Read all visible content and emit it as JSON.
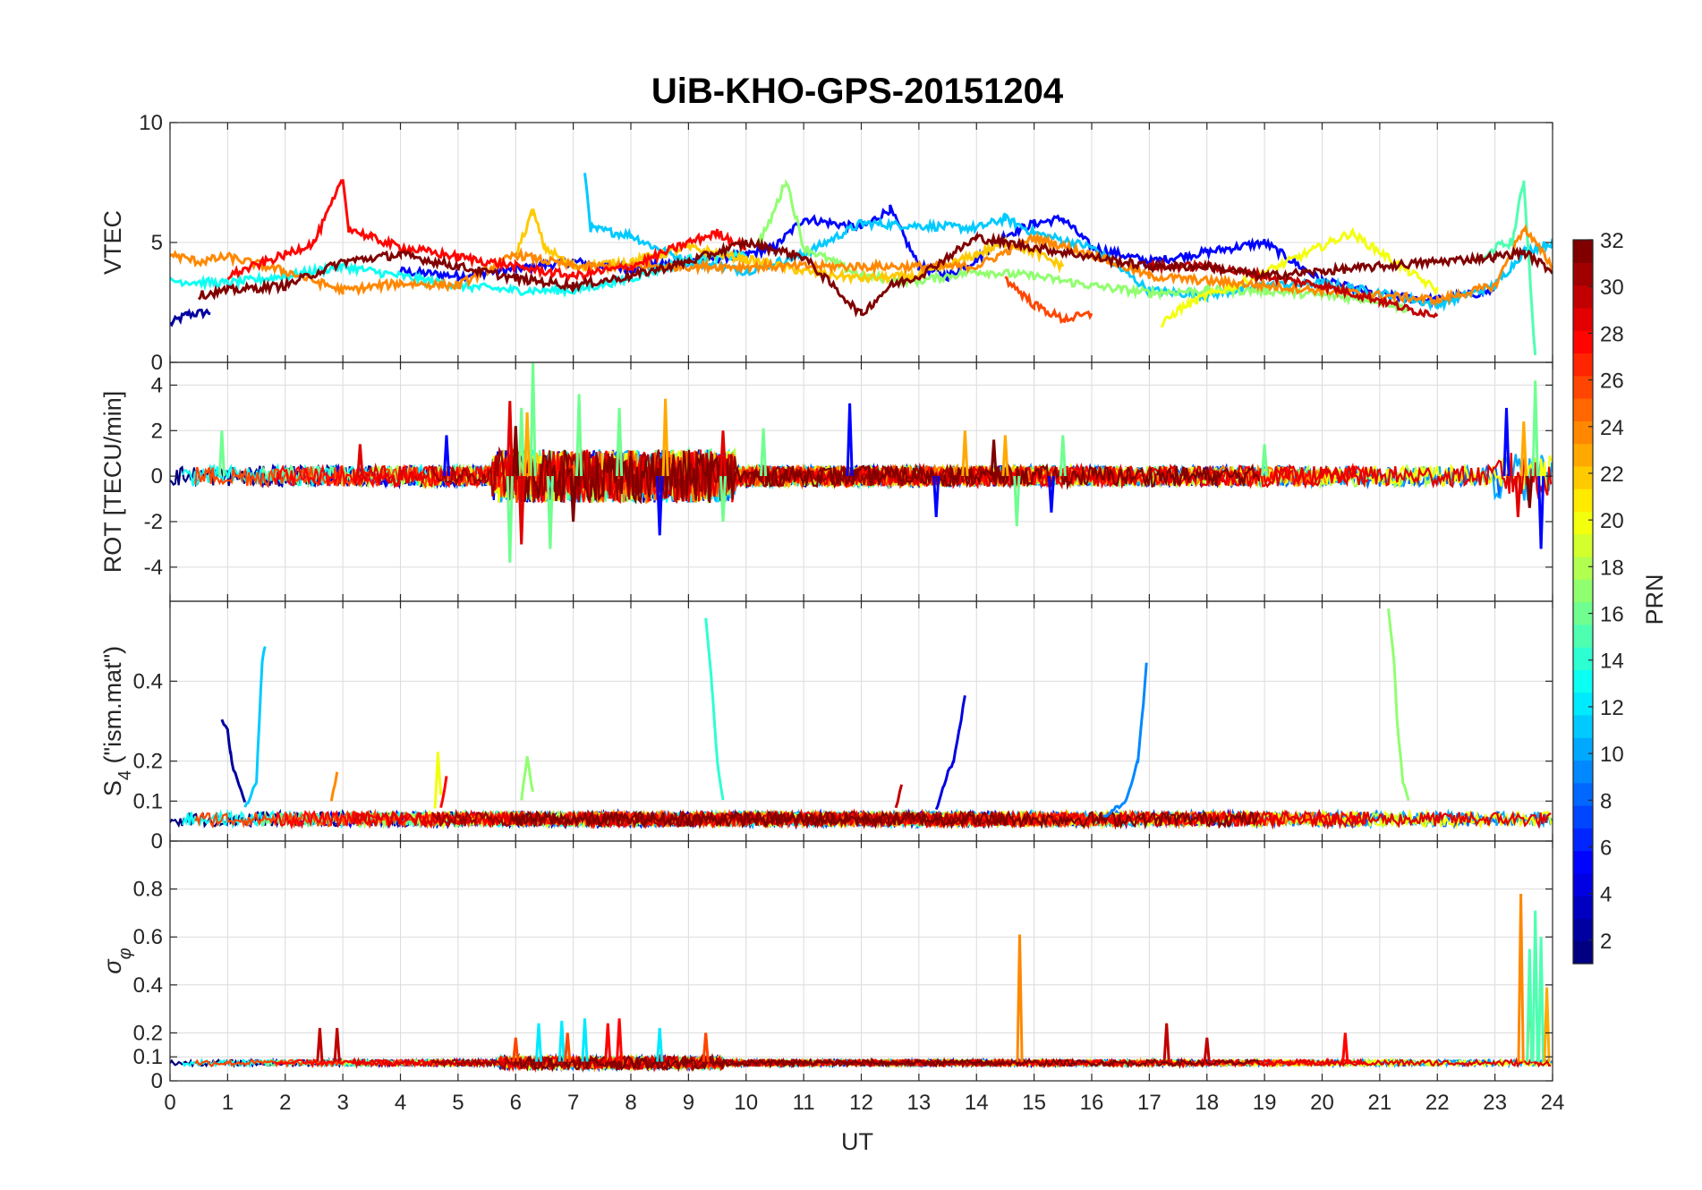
{
  "title": "UiB-KHO-GPS-20151204",
  "chart_data": [
    {
      "type": "line",
      "panel": "vtec",
      "ylabel": "VTEC",
      "ylim": [
        0,
        10
      ],
      "yticks": [
        0,
        5,
        10
      ],
      "xlim": [
        0,
        24
      ],
      "grid": true,
      "series": [
        {
          "prn": 2,
          "x": [
            0.0,
            0.3,
            0.7
          ],
          "y": [
            1.6,
            2.0,
            2.1
          ]
        },
        {
          "prn": 5,
          "x": [
            4.0,
            5.0,
            6.0,
            7.0,
            8.0,
            9.0,
            10.0,
            10.5,
            11.0,
            12.0,
            12.5,
            13.0,
            13.5,
            14.0,
            14.5,
            15.0,
            15.5,
            16.0,
            17.0,
            18.0,
            19.0,
            20.0,
            21.0,
            22.0,
            23.0
          ],
          "y": [
            3.8,
            3.6,
            3.9,
            4.2,
            3.9,
            4.2,
            4.5,
            4.8,
            6.0,
            5.6,
            6.4,
            4.0,
            3.6,
            4.3,
            5.3,
            5.8,
            6.0,
            4.8,
            4.2,
            4.6,
            5.0,
            3.4,
            2.8,
            2.6,
            3.0
          ]
        },
        {
          "prn": 11,
          "x": [
            7.2,
            7.3,
            7.5,
            8.0,
            8.5,
            9.0,
            10.0,
            11.0,
            12.0,
            14.0,
            14.5,
            15.0,
            16.0,
            17.0,
            18.0,
            19.0,
            20.0,
            21.0,
            22.0,
            22.5,
            23.0,
            23.5,
            24.0
          ],
          "y": [
            8.0,
            5.6,
            5.5,
            5.3,
            4.7,
            4.2,
            3.8,
            4.5,
            5.8,
            5.6,
            6.0,
            5.4,
            4.8,
            3.0,
            2.8,
            3.2,
            3.3,
            2.9,
            2.4,
            2.8,
            3.2,
            4.6,
            5.0
          ]
        },
        {
          "prn": 13,
          "x": [
            0.0,
            1.0,
            2.0,
            3.0,
            4.0,
            5.0,
            6.0,
            7.0,
            8.0,
            9.0,
            10.0
          ],
          "y": [
            3.4,
            3.3,
            3.6,
            4.0,
            3.6,
            3.2,
            3.0,
            3.0,
            3.5,
            4.3,
            4.5
          ]
        },
        {
          "prn": 15,
          "x": [
            22.8,
            23.0,
            23.3,
            23.5,
            23.7
          ],
          "y": [
            4.2,
            4.8,
            5.0,
            7.6,
            0.2
          ]
        },
        {
          "prn": 17,
          "x": [
            10.2,
            10.4,
            10.6,
            10.7,
            11.0,
            12.0,
            13.0,
            14.0,
            15.0,
            16.0,
            17.0,
            18.0,
            19.0,
            20.0,
            21.0,
            21.5
          ],
          "y": [
            5.0,
            5.8,
            7.0,
            7.6,
            4.8,
            3.6,
            3.4,
            3.8,
            3.6,
            3.2,
            2.9,
            3.0,
            3.0,
            2.8,
            2.6,
            2.2
          ]
        },
        {
          "prn": 20,
          "x": [
            17.2,
            17.5,
            18.0,
            18.5,
            20.5,
            21.0,
            21.5,
            22.0
          ],
          "y": [
            1.5,
            2.2,
            2.8,
            3.2,
            5.4,
            4.6,
            3.8,
            3.0
          ]
        },
        {
          "prn": 22,
          "x": [
            6.0,
            6.3,
            6.5,
            7.0,
            8.0,
            9.0,
            10.0,
            11.0,
            12.0,
            13.0,
            14.0,
            14.5,
            15.0,
            15.5
          ],
          "y": [
            4.5,
            6.3,
            4.8,
            4.0,
            4.2,
            4.8,
            4.3,
            3.8,
            3.5,
            3.6,
            4.5,
            5.0,
            4.6,
            4.0
          ]
        },
        {
          "prn": 24,
          "x": [
            0.0,
            0.5,
            1.0,
            2.0,
            3.0,
            4.0,
            5.0,
            6.0,
            7.0,
            14.0,
            15.0,
            16.0,
            17.0,
            22.0,
            23.0,
            23.5,
            24.0
          ],
          "y": [
            4.5,
            4.2,
            4.4,
            3.8,
            3.0,
            3.3,
            3.2,
            4.5,
            4.0,
            4.0,
            5.2,
            4.5,
            3.6,
            2.6,
            3.2,
            5.6,
            4.0
          ]
        },
        {
          "prn": 26,
          "x": [
            14.5,
            15.0,
            15.5,
            16.0
          ],
          "y": [
            3.5,
            2.4,
            1.8,
            2.0
          ]
        },
        {
          "prn": 28,
          "x": [
            1.0,
            2.0,
            2.5,
            3.0,
            3.1,
            3.5,
            4.0,
            5.0,
            6.0,
            7.0,
            8.0,
            9.0,
            9.5,
            10.0
          ],
          "y": [
            3.6,
            4.5,
            5.0,
            7.6,
            5.6,
            5.2,
            4.8,
            4.4,
            4.0,
            3.6,
            4.0,
            5.0,
            5.4,
            4.8
          ]
        },
        {
          "prn": 30,
          "x": [
            17.0,
            18.0,
            19.0,
            20.0,
            21.0,
            21.5,
            22.0
          ],
          "y": [
            4.0,
            4.0,
            3.6,
            3.2,
            2.6,
            2.2,
            2.0
          ]
        },
        {
          "prn": 32,
          "x": [
            0.5,
            1.0,
            2.0,
            3.0,
            4.0,
            5.0,
            6.0,
            7.0,
            8.0,
            9.0,
            10.0,
            11.0,
            12.0,
            12.5,
            13.0,
            14.0,
            14.5,
            17.0,
            18.0,
            19.0,
            23.0,
            23.5,
            24.0
          ],
          "y": [
            2.8,
            3.0,
            3.2,
            4.2,
            4.5,
            4.0,
            3.5,
            3.2,
            3.6,
            4.2,
            5.0,
            4.4,
            2.0,
            3.2,
            3.6,
            5.2,
            5.0,
            4.0,
            4.0,
            3.6,
            4.4,
            4.6,
            3.8
          ]
        }
      ]
    },
    {
      "type": "line",
      "panel": "rot",
      "ylabel": "ROT [TECU/min]",
      "ylim": [
        -5.5,
        5
      ],
      "yticks": [
        -4,
        -2,
        0,
        2,
        4
      ],
      "xlim": [
        0,
        24
      ],
      "grid": true,
      "spikes": [
        {
          "prn": 16,
          "x": [
            0.9,
            5.9,
            6.1,
            6.3,
            6.6,
            7.1,
            7.8,
            9.6,
            10.3,
            14.7,
            15.5,
            19.0,
            23.7
          ],
          "y": [
            2.0,
            -3.8,
            3.0,
            5.1,
            -3.2,
            3.6,
            3.0,
            -2.0,
            2.1,
            -2.2,
            1.8,
            1.4,
            4.2
          ]
        },
        {
          "prn": 5,
          "x": [
            4.8,
            8.5,
            11.8,
            13.3,
            15.3,
            23.2,
            23.8
          ],
          "y": [
            1.8,
            -2.6,
            3.2,
            -1.8,
            -1.6,
            3.0,
            -3.2
          ]
        },
        {
          "prn": 23,
          "x": [
            6.2,
            8.6,
            13.8,
            14.5,
            23.5
          ],
          "y": [
            2.8,
            3.4,
            2.0,
            1.8,
            2.4
          ]
        },
        {
          "prn": 29,
          "x": [
            3.3,
            5.9,
            6.1,
            9.6,
            23.4
          ],
          "y": [
            1.4,
            3.3,
            -3.0,
            2.0,
            -1.8
          ]
        },
        {
          "prn": 32,
          "x": [
            6.0,
            7.0,
            14.3,
            23.6
          ],
          "y": [
            2.2,
            -2.0,
            1.6,
            -1.4
          ]
        }
      ]
    },
    {
      "type": "line",
      "panel": "s4",
      "ylabel": "S_4 (\"ism.mat\")",
      "ylim": [
        0,
        0.6
      ],
      "yticks": [
        0,
        0.1,
        0.2,
        0.4
      ],
      "xlim": [
        0,
        24
      ],
      "grid": true,
      "series": [
        {
          "prn": 2,
          "x": [
            0.9,
            1.0,
            1.05,
            1.1,
            1.2,
            1.3
          ],
          "y": [
            0.3,
            0.28,
            0.22,
            0.18,
            0.14,
            0.1
          ]
        },
        {
          "prn": 11,
          "x": [
            1.3,
            1.5,
            1.55,
            1.6,
            1.65
          ],
          "y": [
            0.08,
            0.15,
            0.3,
            0.45,
            0.49
          ]
        },
        {
          "prn": 14,
          "x": [
            9.3,
            9.4,
            9.45,
            9.5,
            9.6
          ],
          "y": [
            0.56,
            0.4,
            0.3,
            0.2,
            0.1
          ]
        },
        {
          "prn": 4,
          "x": [
            13.3,
            13.5,
            13.6,
            13.7,
            13.8
          ],
          "y": [
            0.08,
            0.17,
            0.2,
            0.28,
            0.36
          ]
        },
        {
          "prn": 9,
          "x": [
            16.2,
            16.6,
            16.8,
            16.9,
            16.95
          ],
          "y": [
            0.06,
            0.1,
            0.2,
            0.35,
            0.45
          ]
        },
        {
          "prn": 17,
          "x": [
            21.15,
            21.25,
            21.3,
            21.4,
            21.5
          ],
          "y": [
            0.58,
            0.45,
            0.3,
            0.15,
            0.1
          ]
        },
        {
          "prn": 20,
          "x": [
            4.6,
            4.65,
            4.7
          ],
          "y": [
            0.08,
            0.22,
            0.12
          ]
        },
        {
          "prn": 17,
          "x": [
            6.1,
            6.2,
            6.3
          ],
          "y": [
            0.1,
            0.21,
            0.12
          ]
        },
        {
          "prn": 24,
          "x": [
            2.8,
            2.9
          ],
          "y": [
            0.1,
            0.17
          ]
        },
        {
          "prn": 30,
          "x": [
            12.6,
            12.7
          ],
          "y": [
            0.08,
            0.14
          ]
        },
        {
          "prn": 28,
          "x": [
            4.7,
            4.8
          ],
          "y": [
            0.08,
            0.16
          ]
        }
      ]
    },
    {
      "type": "line",
      "panel": "sigma_phi",
      "ylabel": "σ_φ",
      "ylim": [
        0,
        1
      ],
      "yticks": [
        0,
        0.1,
        0.2,
        0.4,
        0.6,
        0.8
      ],
      "xlim": [
        0,
        24
      ],
      "grid": true,
      "spikes": [
        {
          "prn": 24,
          "x": [
            14.75,
            23.45,
            23.6
          ],
          "y": [
            0.61,
            0.78,
            0.45
          ]
        },
        {
          "prn": 15,
          "x": [
            23.6,
            23.7,
            23.8
          ],
          "y": [
            0.55,
            0.71,
            0.6
          ]
        },
        {
          "prn": 23,
          "x": [
            23.9
          ],
          "y": [
            0.39
          ]
        },
        {
          "prn": 30,
          "x": [
            2.6,
            2.9,
            17.3,
            18.0
          ],
          "y": [
            0.22,
            0.22,
            0.24,
            0.18
          ]
        },
        {
          "prn": 28,
          "x": [
            7.6,
            7.8,
            20.4
          ],
          "y": [
            0.24,
            0.26,
            0.2
          ]
        },
        {
          "prn": 12,
          "x": [
            6.4,
            6.8,
            7.2,
            8.5
          ],
          "y": [
            0.24,
            0.25,
            0.26,
            0.22
          ]
        },
        {
          "prn": 26,
          "x": [
            6.0,
            6.9,
            9.3
          ],
          "y": [
            0.18,
            0.2,
            0.2
          ]
        }
      ]
    }
  ],
  "xaxis": {
    "label": "UT",
    "ticks": [
      "0",
      "1",
      "2",
      "3",
      "4",
      "5",
      "6",
      "7",
      "8",
      "9",
      "10",
      "11",
      "12",
      "13",
      "14",
      "15",
      "16",
      "17",
      "18",
      "19",
      "20",
      "21",
      "22",
      "23",
      "24"
    ]
  },
  "colorbar": {
    "label": "PRN",
    "range": [
      1,
      32
    ],
    "ticks": [
      "2",
      "4",
      "6",
      "8",
      "10",
      "12",
      "14",
      "16",
      "18",
      "20",
      "22",
      "24",
      "26",
      "28",
      "30",
      "32"
    ],
    "colormap": "jet"
  }
}
